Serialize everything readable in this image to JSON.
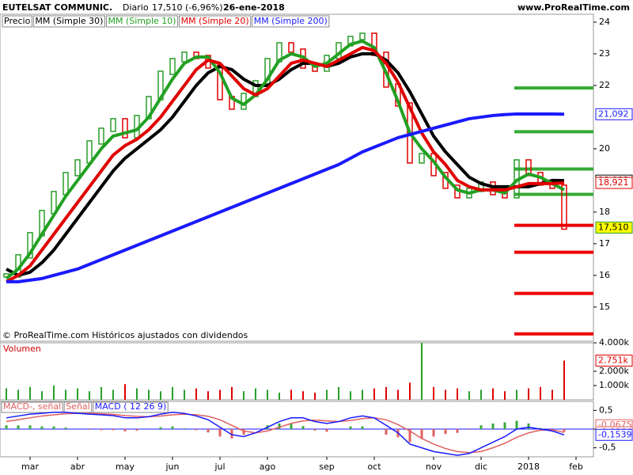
{
  "header": {
    "title": "EUTELSAT COMMUNIC.",
    "period": "Diario",
    "last": "17,510 (-6,96%)",
    "date": "26-ene-2018",
    "site": "www.ProRealTime.com"
  },
  "chart_data": [
    {
      "type": "price",
      "footnote": "© ProRealTime.com Históricos ajustados con dividendos",
      "categories": [
        null,
        null,
        "mar",
        null,
        null,
        null,
        "abr",
        null,
        null,
        null,
        "may",
        null,
        null,
        null,
        "jun",
        null,
        null,
        null,
        "jul",
        null,
        null,
        null,
        "ago",
        null,
        null,
        null,
        null,
        "sep",
        null,
        null,
        null,
        "oct",
        null,
        null,
        null,
        null,
        "nov",
        null,
        null,
        null,
        "dic",
        null,
        null,
        null,
        "2018",
        null,
        null,
        null,
        "feb"
      ],
      "ylim": [
        13.92,
        24.25
      ],
      "yticks": [
        15,
        16,
        17,
        18,
        20,
        22,
        23,
        24
      ],
      "series": [
        {
          "name": "Precio",
          "color": "#2a9d2a",
          "down_color": "#e00000",
          "style": "bars",
          "values": [
            16.0,
            16.6,
            17.3,
            18.0,
            18.6,
            19.2,
            19.6,
            20.2,
            20.6,
            20.9,
            20.4,
            21.0,
            21.6,
            22.4,
            22.8,
            23.0,
            22.9,
            22.6,
            21.6,
            21.3,
            21.7,
            22.1,
            22.8,
            23.3,
            23.1,
            22.6,
            22.5,
            22.9,
            23.3,
            23.5,
            23.6,
            23.0,
            22.0,
            21.4,
            19.6,
            19.8,
            19.2,
            18.8,
            18.5,
            18.7,
            18.9,
            18.6,
            18.5,
            19.6,
            19.2,
            18.9,
            18.8,
            17.51,
            null
          ],
          "value_labels": [
            null,
            null,
            null,
            null,
            null,
            null,
            null,
            null,
            null,
            null,
            null,
            null,
            null,
            null,
            null,
            null,
            null,
            null,
            null,
            null,
            null,
            null,
            null,
            null,
            null,
            null,
            null,
            null,
            null,
            null,
            null,
            null,
            null,
            null,
            null,
            null,
            null,
            null,
            null,
            null,
            null,
            null,
            null,
            null,
            null,
            null,
            null,
            "17,510",
            null
          ],
          "label_fill": "#ffff00"
        },
        {
          "name": "MM (Simple 30)",
          "color": "#000000",
          "style": "line",
          "values": [
            16.2,
            16.0,
            16.1,
            16.4,
            16.8,
            17.3,
            17.8,
            18.3,
            18.8,
            19.3,
            19.7,
            20.0,
            20.3,
            20.6,
            21.0,
            21.5,
            22.0,
            22.4,
            22.6,
            22.5,
            22.2,
            22.0,
            22.0,
            22.2,
            22.5,
            22.7,
            22.7,
            22.6,
            22.7,
            22.9,
            23.0,
            23.0,
            22.8,
            22.4,
            21.8,
            21.1,
            20.4,
            19.9,
            19.5,
            19.1,
            18.9,
            18.8,
            18.8,
            18.8,
            18.8,
            18.9,
            19.0,
            18.993,
            null
          ],
          "value_labels": [
            null,
            null,
            null,
            null,
            null,
            null,
            null,
            null,
            null,
            null,
            null,
            null,
            null,
            null,
            null,
            null,
            null,
            null,
            null,
            null,
            null,
            null,
            null,
            null,
            null,
            null,
            null,
            null,
            null,
            null,
            null,
            null,
            null,
            null,
            null,
            null,
            null,
            null,
            null,
            null,
            null,
            null,
            null,
            null,
            null,
            null,
            null,
            "18,993",
            null
          ]
        },
        {
          "name": "MM (Simple 10)",
          "color": "#22a022",
          "style": "line",
          "values": [
            15.9,
            16.2,
            16.7,
            17.3,
            17.9,
            18.5,
            19.0,
            19.5,
            20.0,
            20.4,
            20.5,
            20.6,
            21.0,
            21.6,
            22.2,
            22.7,
            22.9,
            22.9,
            22.4,
            21.6,
            21.4,
            21.7,
            22.2,
            22.8,
            23.0,
            22.9,
            22.6,
            22.7,
            23.0,
            23.3,
            23.4,
            23.2,
            22.4,
            21.5,
            20.5,
            20.0,
            19.6,
            19.1,
            18.7,
            18.6,
            18.7,
            18.7,
            18.6,
            19.0,
            19.2,
            19.1,
            18.9,
            18.7,
            null
          ]
        },
        {
          "name": "MM (Simple 20)",
          "color": "#e00000",
          "style": "line",
          "values": [
            15.8,
            16.0,
            16.3,
            16.8,
            17.3,
            17.8,
            18.3,
            18.8,
            19.3,
            19.8,
            20.1,
            20.3,
            20.6,
            21.0,
            21.5,
            22.0,
            22.5,
            22.8,
            22.7,
            22.3,
            21.9,
            21.7,
            21.9,
            22.3,
            22.7,
            22.8,
            22.7,
            22.6,
            22.8,
            23.0,
            23.2,
            23.1,
            22.7,
            22.1,
            21.3,
            20.5,
            19.9,
            19.5,
            19.0,
            18.8,
            18.7,
            18.7,
            18.7,
            18.8,
            18.9,
            18.9,
            18.9,
            18.921,
            null
          ],
          "value_labels": [
            null,
            null,
            null,
            null,
            null,
            null,
            null,
            null,
            null,
            null,
            null,
            null,
            null,
            null,
            null,
            null,
            null,
            null,
            null,
            null,
            null,
            null,
            null,
            null,
            null,
            null,
            null,
            null,
            null,
            null,
            null,
            null,
            null,
            null,
            null,
            null,
            null,
            null,
            null,
            null,
            null,
            null,
            null,
            null,
            null,
            null,
            null,
            "18,921",
            null
          ]
        },
        {
          "name": "MM (Simple 200)",
          "color": "#1a1aff",
          "style": "line",
          "values": [
            15.8,
            15.8,
            15.85,
            15.9,
            16.0,
            16.1,
            16.2,
            16.35,
            16.5,
            16.65,
            16.8,
            16.95,
            17.1,
            17.25,
            17.4,
            17.55,
            17.7,
            17.85,
            18.0,
            18.15,
            18.3,
            18.45,
            18.6,
            18.75,
            18.9,
            19.05,
            19.2,
            19.35,
            19.5,
            19.7,
            19.9,
            20.05,
            20.2,
            20.35,
            20.45,
            20.55,
            20.65,
            20.75,
            20.85,
            20.95,
            21.0,
            21.05,
            21.08,
            21.1,
            21.1,
            21.1,
            21.1,
            21.092,
            null
          ],
          "value_labels": [
            null,
            null,
            null,
            null,
            null,
            null,
            null,
            null,
            null,
            null,
            null,
            null,
            null,
            null,
            null,
            null,
            null,
            null,
            null,
            null,
            null,
            null,
            null,
            null,
            null,
            null,
            null,
            null,
            null,
            null,
            null,
            null,
            null,
            null,
            null,
            null,
            null,
            null,
            null,
            null,
            null,
            null,
            null,
            null,
            null,
            null,
            null,
            "21,092",
            null
          ]
        }
      ],
      "levels": [
        {
          "value": 21.92,
          "color": "#33aa33"
        },
        {
          "value": 20.54,
          "color": "#33aa33"
        },
        {
          "value": 19.36,
          "color": "#33aa33"
        },
        {
          "value": 18.56,
          "color": "#33aa33"
        },
        {
          "value": 17.58,
          "color": "#ee0000"
        },
        {
          "value": 16.73,
          "color": "#ee0000"
        },
        {
          "value": 15.43,
          "color": "#ee0000"
        },
        {
          "value": 14.15,
          "color": "#ee0000"
        }
      ]
    },
    {
      "type": "volume",
      "title": "Volumen",
      "ylim": [
        0,
        4000
      ],
      "yticks": [
        {
          "value": 4000,
          "label": "4.000k"
        },
        {
          "value": 2000,
          "label": "2.000k"
        },
        {
          "value": 1000,
          "label": "1.000k"
        }
      ],
      "color": "#2a9d2a",
      "down_color": "#e00000",
      "values": [
        800,
        700,
        900,
        600,
        1000,
        700,
        800,
        600,
        900,
        700,
        1100,
        800,
        700,
        600,
        900,
        700,
        800,
        600,
        700,
        900,
        600,
        800,
        700,
        500,
        700,
        600,
        500,
        700,
        900,
        600,
        700,
        800,
        900,
        700,
        1200,
        4000,
        900,
        700,
        800,
        600,
        700,
        800,
        600,
        700,
        800,
        900,
        700,
        2751,
        null
      ],
      "value_labels": [
        null,
        null,
        null,
        null,
        null,
        null,
        null,
        null,
        null,
        null,
        null,
        null,
        null,
        null,
        null,
        null,
        null,
        null,
        null,
        null,
        null,
        null,
        null,
        null,
        null,
        null,
        null,
        null,
        null,
        null,
        null,
        null,
        null,
        null,
        null,
        null,
        null,
        null,
        null,
        null,
        null,
        null,
        null,
        null,
        null,
        null,
        null,
        "2.751k",
        null
      ]
    },
    {
      "type": "macd",
      "ylim": [
        -0.74,
        0.74
      ],
      "yticks": [
        {
          "value": 0.5,
          "label": "0,5"
        },
        0,
        {
          "value": -0.5,
          "label": "-0,5"
        }
      ],
      "series": [
        {
          "name": "MACD-, señal",
          "color": "#e06060",
          "style": "hist",
          "values": [
            0.1,
            0.1,
            0.1,
            0.07,
            0.07,
            0.04,
            0,
            -0.02,
            -0.03,
            -0.03,
            -0.06,
            -0.04,
            0,
            0.05,
            0.07,
            0.02,
            -0.03,
            -0.09,
            -0.2,
            -0.25,
            -0.15,
            0,
            0.1,
            0.15,
            0.15,
            0.08,
            -0.04,
            -0.07,
            0,
            0.07,
            0.07,
            0,
            -0.15,
            -0.22,
            -0.35,
            -0.25,
            -0.2,
            -0.13,
            -0.1,
            -0.02,
            0.1,
            0.15,
            0.18,
            0.22,
            0.15,
            0.03,
            -0.03,
            -0.0675,
            null
          ],
          "value_labels": [
            null,
            null,
            null,
            null,
            null,
            null,
            null,
            null,
            null,
            null,
            null,
            null,
            null,
            null,
            null,
            null,
            null,
            null,
            null,
            null,
            null,
            null,
            null,
            null,
            null,
            null,
            null,
            null,
            null,
            null,
            null,
            null,
            null,
            null,
            null,
            null,
            null,
            null,
            null,
            null,
            null,
            null,
            null,
            null,
            null,
            null,
            null,
            "-0,0675",
            null
          ]
        },
        {
          "name": "Señal",
          "color": "#e06060",
          "style": "line",
          "values": [
            0.2,
            0.25,
            0.3,
            0.35,
            0.38,
            0.41,
            0.42,
            0.42,
            0.41,
            0.39,
            0.36,
            0.34,
            0.33,
            0.35,
            0.38,
            0.4,
            0.38,
            0.34,
            0.25,
            0.1,
            -0.05,
            -0.1,
            -0.05,
            0.05,
            0.15,
            0.22,
            0.24,
            0.22,
            0.2,
            0.23,
            0.28,
            0.3,
            0.25,
            0.12,
            -0.05,
            -0.25,
            -0.4,
            -0.52,
            -0.6,
            -0.63,
            -0.6,
            -0.5,
            -0.38,
            -0.22,
            -0.1,
            -0.03,
            -0.02,
            -0.0864,
            null
          ],
          "value_labels": [
            null,
            null,
            null,
            null,
            null,
            null,
            null,
            null,
            null,
            null,
            null,
            null,
            null,
            null,
            null,
            null,
            null,
            null,
            null,
            null,
            null,
            null,
            null,
            null,
            null,
            null,
            null,
            null,
            null,
            null,
            null,
            null,
            null,
            null,
            null,
            null,
            null,
            null,
            null,
            null,
            null,
            null,
            null,
            null,
            null,
            null,
            null,
            "-0,0864",
            null
          ]
        },
        {
          "name": "MACD ( 12 26 9)",
          "color": "#1a1aff",
          "style": "line",
          "values": [
            0.3,
            0.35,
            0.4,
            0.42,
            0.45,
            0.45,
            0.42,
            0.4,
            0.38,
            0.36,
            0.3,
            0.3,
            0.33,
            0.4,
            0.45,
            0.42,
            0.35,
            0.25,
            0.05,
            -0.15,
            -0.2,
            -0.1,
            0.05,
            0.2,
            0.3,
            0.3,
            0.2,
            0.15,
            0.2,
            0.3,
            0.35,
            0.3,
            0.1,
            -0.1,
            -0.4,
            -0.5,
            -0.6,
            -0.65,
            -0.7,
            -0.65,
            -0.5,
            -0.35,
            -0.2,
            0.0,
            0.05,
            0.0,
            -0.05,
            -0.1539,
            null
          ],
          "value_labels": [
            null,
            null,
            null,
            null,
            null,
            null,
            null,
            null,
            null,
            null,
            null,
            null,
            null,
            null,
            null,
            null,
            null,
            null,
            null,
            null,
            null,
            null,
            null,
            null,
            null,
            null,
            null,
            null,
            null,
            null,
            null,
            null,
            null,
            null,
            null,
            null,
            null,
            null,
            null,
            null,
            null,
            null,
            null,
            null,
            null,
            null,
            null,
            "-0,1539",
            null
          ]
        }
      ]
    }
  ]
}
